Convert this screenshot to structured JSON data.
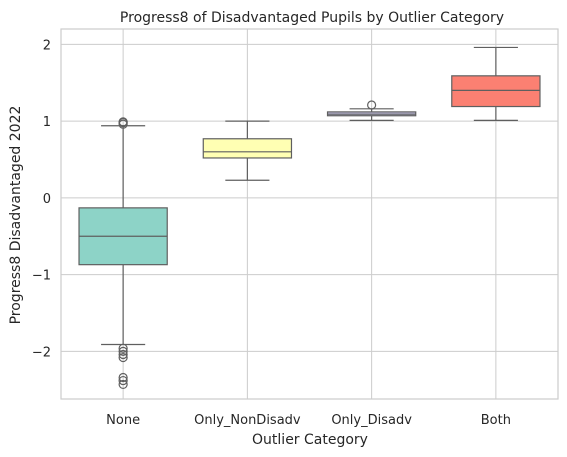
{
  "chart_data": {
    "type": "box",
    "title": "Progress8 of Disadvantaged Pupils by Outlier Category",
    "xlabel": "Outlier Category",
    "ylabel": "Progress8 Disadvantaged 2022",
    "ylim": [
      -2.62,
      2.2
    ],
    "yticks": [
      {
        "value": 2,
        "label": "2"
      },
      {
        "value": 1,
        "label": "1"
      },
      {
        "value": 0,
        "label": "0"
      },
      {
        "value": -1,
        "label": "−1"
      },
      {
        "value": -2,
        "label": "−2"
      }
    ],
    "grid": true,
    "categories": [
      {
        "label": "None",
        "color": "#8dd3c7",
        "whisker_low": -1.91,
        "q1": -0.87,
        "median": -0.5,
        "q3": -0.13,
        "whisker_high": 0.94,
        "outliers": [
          0.96,
          0.98,
          0.99,
          -1.96,
          -2.0,
          -2.04,
          -2.08,
          -2.34,
          -2.38,
          -2.43
        ]
      },
      {
        "label": "Only_NonDisadv",
        "color": "#ffffb3",
        "whisker_low": 0.23,
        "q1": 0.52,
        "median": 0.6,
        "q3": 0.77,
        "whisker_high": 1.0,
        "outliers": []
      },
      {
        "label": "Only_Disadv",
        "color": "#bebada",
        "whisker_low": 1.01,
        "q1": 1.07,
        "median": 1.09,
        "q3": 1.12,
        "whisker_high": 1.16,
        "outliers": [
          1.21
        ]
      },
      {
        "label": "Both",
        "color": "#fb8072",
        "whisker_low": 1.01,
        "q1": 1.19,
        "median": 1.4,
        "q3": 1.59,
        "whisker_high": 1.96,
        "outliers": []
      }
    ]
  }
}
